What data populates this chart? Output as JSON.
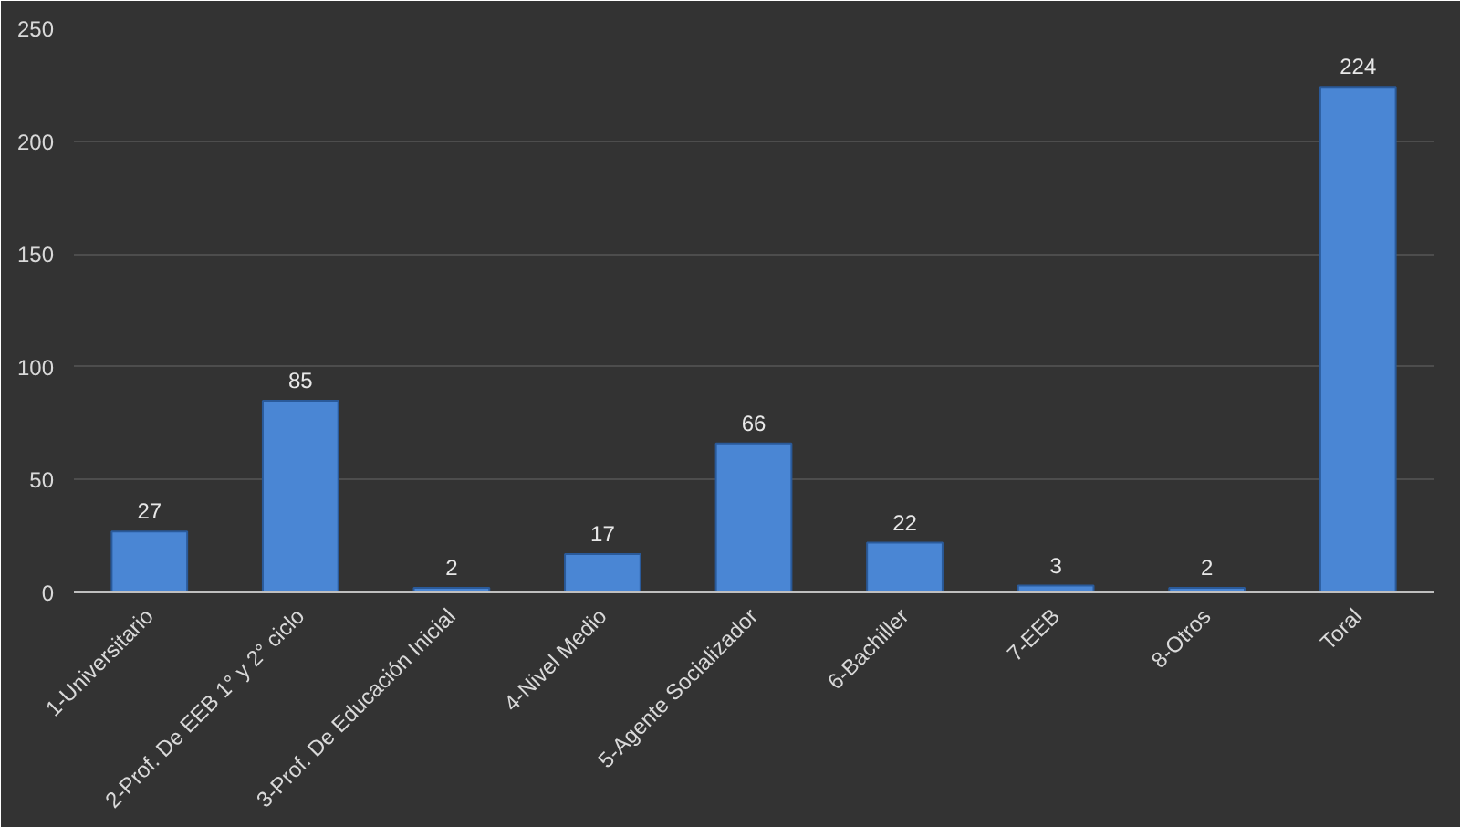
{
  "chart_data": {
    "type": "bar",
    "categories": [
      "1-Universitario",
      "2-Prof. De EEB 1° y 2° ciclo",
      "3-Prof. De Educación Inicial",
      "4-Nivel Medio",
      "5-Agente Socializador",
      "6-Bachiller",
      "7-EEB",
      "8-Otros",
      "Toral"
    ],
    "values": [
      27,
      85,
      2,
      17,
      66,
      22,
      3,
      2,
      224
    ],
    "color": "#4a86d4",
    "ylim": [
      0,
      250
    ],
    "yticks": [
      0,
      50,
      100,
      150,
      200,
      250
    ],
    "grid": "y",
    "data_labels": true
  }
}
